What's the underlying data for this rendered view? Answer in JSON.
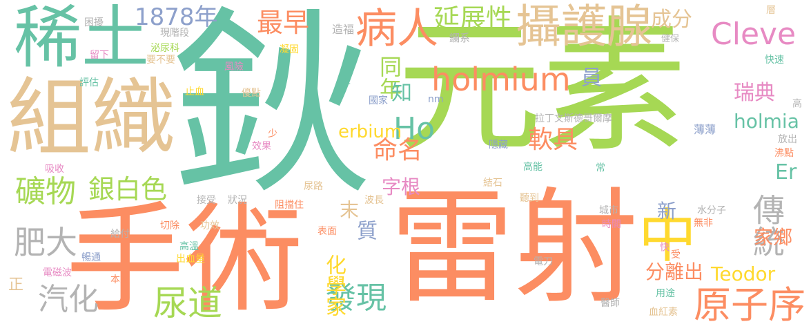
{
  "palette": {
    "teal": "#66c2a5",
    "orange": "#fc8d62",
    "blue": "#8da0cb",
    "pink": "#e78ac3",
    "green": "#a6d854",
    "yellow": "#ffd92f",
    "tan": "#e5c494",
    "gray": "#b3b3b3"
  },
  "words": [
    {
      "text": "鈥",
      "color": "teal"
    },
    {
      "text": "元素",
      "color": "green"
    },
    {
      "text": "雷射",
      "color": "orange"
    },
    {
      "text": "手術",
      "color": "orange"
    },
    {
      "text": "組織",
      "color": "tan"
    },
    {
      "text": "稀土",
      "color": "teal"
    },
    {
      "text": "中",
      "color": "yellow"
    },
    {
      "text": "攝護腺",
      "color": "tan"
    },
    {
      "text": "病人",
      "color": "orange"
    },
    {
      "text": "holmium",
      "color": "orange"
    },
    {
      "text": "Cleve",
      "color": "pink"
    },
    {
      "text": "原子序",
      "color": "orange"
    },
    {
      "text": "傳統",
      "color": "gray"
    },
    {
      "text": "尿道",
      "color": "green"
    },
    {
      "text": "發現",
      "color": "teal"
    },
    {
      "text": "汽化",
      "color": "gray"
    },
    {
      "text": "肥大",
      "color": "gray"
    },
    {
      "text": "礦物",
      "color": "green"
    },
    {
      "text": "銀白色",
      "color": "green"
    },
    {
      "text": "1878年",
      "color": "blue"
    },
    {
      "text": "最早",
      "color": "orange"
    },
    {
      "text": "延展性",
      "color": "green"
    },
    {
      "text": "成分",
      "color": "tan"
    },
    {
      "text": "Ho",
      "color": "teal"
    },
    {
      "text": "erbium",
      "color": "yellow"
    },
    {
      "text": "命名",
      "color": "orange"
    },
    {
      "text": "軟具",
      "color": "orange"
    },
    {
      "text": "同年",
      "color": "green"
    },
    {
      "text": "知",
      "color": "teal"
    },
    {
      "text": "員",
      "color": "blue"
    },
    {
      "text": "瑞典",
      "color": "pink"
    },
    {
      "text": "holmia",
      "color": "teal"
    },
    {
      "text": "Er",
      "color": "teal"
    },
    {
      "text": "Teodor",
      "color": "yellow"
    },
    {
      "text": "家鄉",
      "color": "orange"
    },
    {
      "text": "分離出",
      "color": "orange"
    },
    {
      "text": "新",
      "color": "blue"
    },
    {
      "text": "化學家",
      "color": "yellow"
    },
    {
      "text": "質",
      "color": "blue"
    },
    {
      "text": "末",
      "color": "tan"
    },
    {
      "text": "字根",
      "color": "pink"
    },
    {
      "text": "造福",
      "color": "gray"
    },
    {
      "text": "鑭系",
      "color": "gray"
    },
    {
      "text": "主",
      "color": "teal"
    },
    {
      "text": "國家",
      "color": "blue"
    },
    {
      "text": "nm",
      "color": "blue"
    },
    {
      "text": "拉丁文斯德哥爾摩",
      "color": "gray"
    },
    {
      "text": "薄薄",
      "color": "blue"
    },
    {
      "text": "隱藏",
      "color": "blue"
    },
    {
      "text": "高能",
      "color": "teal"
    },
    {
      "text": "常",
      "color": "teal"
    },
    {
      "text": "結石",
      "color": "tan"
    },
    {
      "text": "聽到",
      "color": "tan"
    },
    {
      "text": "電刀",
      "color": "gray"
    },
    {
      "text": "城市",
      "color": "gray"
    },
    {
      "text": "時間",
      "color": "pink"
    },
    {
      "text": "無非",
      "color": "orange"
    },
    {
      "text": "水分子",
      "color": "gray"
    },
    {
      "text": "快速",
      "color": "teal"
    },
    {
      "text": "健保",
      "color": "gray"
    },
    {
      "text": "層",
      "color": "tan"
    },
    {
      "text": "高",
      "color": "gray"
    },
    {
      "text": "放出",
      "color": "gray"
    },
    {
      "text": "沸點",
      "color": "orange"
    },
    {
      "text": "快",
      "color": "pink"
    },
    {
      "text": "受",
      "color": "orange"
    },
    {
      "text": "用途",
      "color": "teal"
    },
    {
      "text": "醫師",
      "color": "gray"
    },
    {
      "text": "血紅素",
      "color": "tan"
    },
    {
      "text": "困擾",
      "color": "gray"
    },
    {
      "text": "現階段",
      "color": "gray"
    },
    {
      "text": "泌尿科",
      "color": "green"
    },
    {
      "text": "留下",
      "color": "pink"
    },
    {
      "text": "要不要",
      "color": "tan"
    },
    {
      "text": "評估",
      "color": "teal"
    },
    {
      "text": "風險",
      "color": "pink"
    },
    {
      "text": "凝固",
      "color": "yellow"
    },
    {
      "text": "止血",
      "color": "yellow"
    },
    {
      "text": "優點",
      "color": "tan"
    },
    {
      "text": "少",
      "color": "orange"
    },
    {
      "text": "效果",
      "color": "pink"
    },
    {
      "text": "吸收",
      "color": "pink"
    },
    {
      "text": "尿路",
      "color": "tan"
    },
    {
      "text": "接受",
      "color": "gray"
    },
    {
      "text": "狀況",
      "color": "gray"
    },
    {
      "text": "阻擋住",
      "color": "orange"
    },
    {
      "text": "波長",
      "color": "tan"
    },
    {
      "text": "表面",
      "color": "orange"
    },
    {
      "text": "切除",
      "color": "orange"
    },
    {
      "text": "功效",
      "color": "tan"
    },
    {
      "text": "給付",
      "color": "gray"
    },
    {
      "text": "高溫",
      "color": "teal"
    },
    {
      "text": "暢通",
      "color": "blue"
    },
    {
      "text": "出血量",
      "color": "yellow"
    },
    {
      "text": "電磁波",
      "color": "pink"
    },
    {
      "text": "本文",
      "color": "orange"
    },
    {
      "text": "正",
      "color": "tan"
    }
  ]
}
